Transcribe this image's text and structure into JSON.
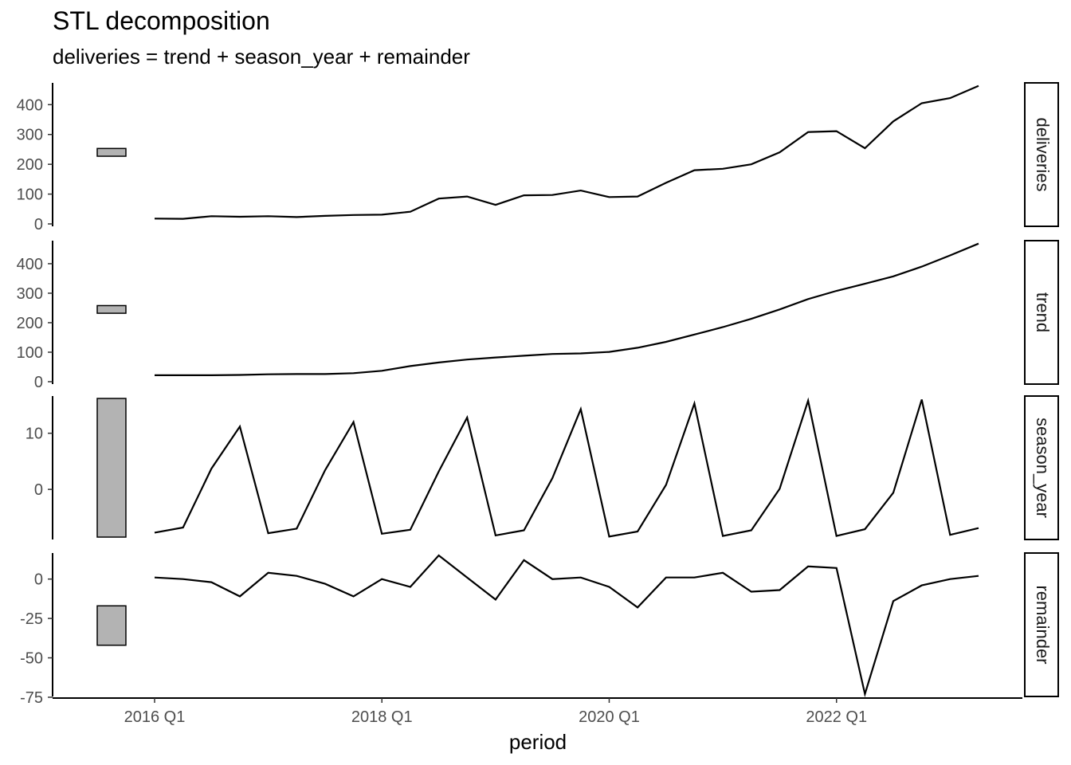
{
  "chart_data": {
    "type": "line",
    "title": "STL decomposition",
    "subtitle": "deliveries = trend + season_year + remainder",
    "xlabel": "period",
    "x": [
      "2016 Q1",
      "2016 Q2",
      "2016 Q3",
      "2016 Q4",
      "2017 Q1",
      "2017 Q2",
      "2017 Q3",
      "2017 Q4",
      "2018 Q1",
      "2018 Q2",
      "2018 Q3",
      "2018 Q4",
      "2019 Q1",
      "2019 Q2",
      "2019 Q3",
      "2019 Q4",
      "2020 Q1",
      "2020 Q2",
      "2020 Q3",
      "2020 Q4",
      "2021 Q1",
      "2021 Q2",
      "2021 Q3",
      "2021 Q4",
      "2022 Q1",
      "2022 Q2",
      "2022 Q3",
      "2022 Q4",
      "2023 Q1",
      "2023 Q2"
    ],
    "x_tick_labels": [
      "2016 Q1",
      "2018 Q1",
      "2020 Q1",
      "2022 Q1"
    ],
    "x_tick_index": [
      0,
      8,
      16,
      24
    ],
    "grid": false,
    "legend": "none",
    "panels": [
      {
        "name": "deliveries",
        "ylim": [
          0,
          465
        ],
        "yticks": [
          0,
          100,
          200,
          300,
          400
        ],
        "scale_bar": [
          227,
          253
        ],
        "values": [
          18,
          17,
          26,
          24,
          26,
          23,
          27,
          30,
          31,
          41,
          85,
          92,
          64,
          96,
          97,
          112,
          90,
          92,
          138,
          180,
          185,
          200,
          240,
          308,
          311,
          254,
          344,
          405,
          422,
          463
        ]
      },
      {
        "name": "trend",
        "ylim": [
          0,
          470
        ],
        "yticks": [
          0,
          100,
          200,
          300,
          400
        ],
        "scale_bar": [
          232,
          258
        ],
        "values": [
          22,
          22,
          22,
          23,
          25,
          26,
          26,
          29,
          37,
          53,
          65,
          75,
          82,
          88,
          94,
          96,
          101,
          115,
          135,
          160,
          185,
          213,
          245,
          280,
          308,
          332,
          357,
          390,
          428,
          468
        ]
      },
      {
        "name": "season_year",
        "ylim": [
          -8.5,
          16.2
        ],
        "yticks": [
          0,
          10
        ],
        "scale_bar": [
          -8.5,
          16.2
        ],
        "values": [
          -7.7,
          -6.8,
          3.7,
          11.2,
          -7.8,
          -7.0,
          3.4,
          12.0,
          -7.9,
          -7.2,
          3.2,
          12.8,
          -8.2,
          -7.3,
          2.0,
          14.3,
          -8.4,
          -7.5,
          0.8,
          15.3,
          -8.3,
          -7.3,
          0.1,
          15.8,
          -8.3,
          -7.1,
          -0.6,
          16.0,
          -8.1,
          -6.9
        ]
      },
      {
        "name": "remainder",
        "ylim": [
          -73,
          15
        ],
        "yticks": [
          0,
          -25,
          -50,
          -75
        ],
        "scale_bar": [
          -42,
          -17
        ],
        "values": [
          1,
          0,
          -2,
          -11,
          4,
          2,
          -3,
          -11,
          0,
          -5,
          15,
          1,
          -13,
          12,
          0,
          1,
          -5,
          -18,
          1,
          1,
          4,
          -8,
          -7,
          8,
          7,
          -73,
          -14,
          -4,
          0,
          2
        ]
      }
    ]
  }
}
